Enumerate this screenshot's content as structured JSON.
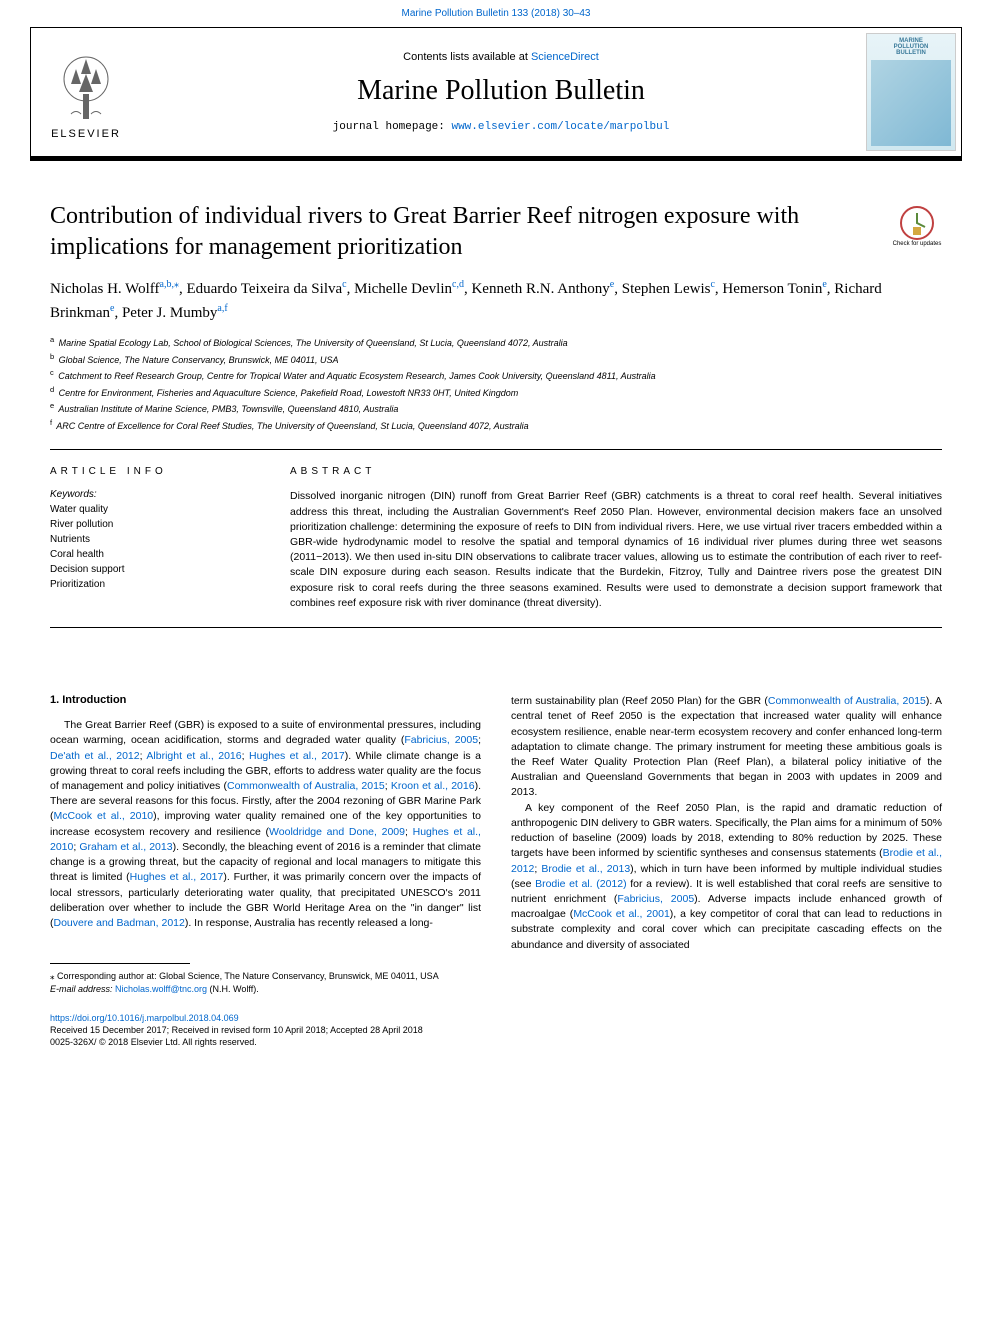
{
  "top_citation": "Marine Pollution Bulletin 133 (2018) 30–43",
  "header": {
    "contents_prefix": "Contents lists available at ",
    "contents_link": "ScienceDirect",
    "journal_name": "Marine Pollution Bulletin",
    "homepage_prefix": "journal homepage: ",
    "homepage_link": "www.elsevier.com/locate/marpolbul",
    "publisher_name": "ELSEVIER",
    "cover_title_l1": "MARINE",
    "cover_title_l2": "POLLUTION",
    "cover_title_l3": "BULLETIN"
  },
  "article": {
    "title": "Contribution of individual rivers to Great Barrier Reef nitrogen exposure with implications for management prioritization",
    "check_updates_label": "Check for updates",
    "authors_html": "Nicholas H. Wolff<sup><a>a</a>,<a>b</a>,⁎</sup>, Eduardo Teixeira da Silva<sup><a>c</a></sup>, Michelle Devlin<sup><a>c</a>,<a>d</a></sup>, Kenneth R.N. Anthony<sup><a>e</a></sup>, Stephen Lewis<sup><a>c</a></sup>, Hemerson Tonin<sup><a>e</a></sup>, Richard Brinkman<sup><a>e</a></sup>, Peter J. Mumby<sup><a>a</a>,<a>f</a></sup>",
    "affiliations": [
      {
        "sup": "a",
        "text": "Marine Spatial Ecology Lab, School of Biological Sciences, The University of Queensland, St Lucia, Queensland 4072, Australia"
      },
      {
        "sup": "b",
        "text": "Global Science, The Nature Conservancy, Brunswick, ME 04011, USA"
      },
      {
        "sup": "c",
        "text": "Catchment to Reef Research Group, Centre for Tropical Water and Aquatic Ecosystem Research, James Cook University, Queensland 4811, Australia"
      },
      {
        "sup": "d",
        "text": "Centre for Environment, Fisheries and Aquaculture Science, Pakefield Road, Lowestoft NR33 0HT, United Kingdom"
      },
      {
        "sup": "e",
        "text": "Australian Institute of Marine Science, PMB3, Townsville, Queensland 4810, Australia"
      },
      {
        "sup": "f",
        "text": "ARC Centre of Excellence for Coral Reef Studies, The University of Queensland, St Lucia, Queensland 4072, Australia"
      }
    ]
  },
  "article_info": {
    "section_label": "ARTICLE INFO",
    "keywords_label": "Keywords:",
    "keywords": [
      "Water quality",
      "River pollution",
      "Nutrients",
      "Coral health",
      "Decision support",
      "Prioritization"
    ]
  },
  "abstract": {
    "section_label": "ABSTRACT",
    "text": "Dissolved inorganic nitrogen (DIN) runoff from Great Barrier Reef (GBR) catchments is a threat to coral reef health. Several initiatives address this threat, including the Australian Government's Reef 2050 Plan. However, environmental decision makers face an unsolved prioritization challenge: determining the exposure of reefs to DIN from individual rivers. Here, we use virtual river tracers embedded within a GBR-wide hydrodynamic model to resolve the spatial and temporal dynamics of 16 individual river plumes during three wet seasons (2011−2013). We then used in-situ DIN observations to calibrate tracer values, allowing us to estimate the contribution of each river to reef-scale DIN exposure during each season. Results indicate that the Burdekin, Fitzroy, Tully and Daintree rivers pose the greatest DIN exposure risk to coral reefs during the three seasons examined. Results were used to demonstrate a decision support framework that combines reef exposure risk with river dominance (threat diversity)."
  },
  "body": {
    "heading": "1. Introduction",
    "col1_html": "The Great Barrier Reef (GBR) is exposed to a suite of environmental pressures, including ocean warming, ocean acidification, storms and degraded water quality (<a>Fabricius, 2005</a>; <a>De'ath et al., 2012</a>; <a>Albright et al., 2016</a>; <a>Hughes et al., 2017</a>). While climate change is a growing threat to coral reefs including the GBR, efforts to address water quality are the focus of management and policy initiatives (<a>Commonwealth of Australia, 2015</a>; <a>Kroon et al., 2016</a>). There are several reasons for this focus. Firstly, after the 2004 rezoning of GBR Marine Park (<a>McCook et al., 2010</a>), improving water quality remained one of the key opportunities to increase ecosystem recovery and resilience (<a>Wooldridge and Done, 2009</a>; <a>Hughes et al., 2010</a>; <a>Graham et al., 2013</a>). Secondly, the bleaching event of 2016 is a reminder that climate change is a growing threat, but the capacity of regional and local managers to mitigate this threat is limited (<a>Hughes et al., 2017</a>). Further, it was primarily concern over the impacts of local stressors, particularly deteriorating water quality, that precipitated UNESCO's 2011 deliberation over whether to include the GBR World Heritage Area on the \"in danger\" list (<a>Douvere and Badman, 2012</a>). In response, Australia has recently released a long-",
    "col2_html": "term sustainability plan (Reef 2050 Plan) for the GBR (<a>Commonwealth of Australia, 2015</a>). A central tenet of Reef 2050 is the expectation that increased water quality will enhance ecosystem resilience, enable near-term ecosystem recovery and confer enhanced long-term adaptation to climate change. The primary instrument for meeting these ambitious goals is the Reef Water Quality Protection Plan (Reef Plan), a bilateral policy initiative of the Australian and Queensland Governments that began in 2003 with updates in 2009 and 2013.",
    "col2_p2_html": "A key component of the Reef 2050 Plan, is the rapid and dramatic reduction of anthropogenic DIN delivery to GBR waters. Specifically, the Plan aims for a minimum of 50% reduction of baseline (2009) loads by 2018, extending to 80% reduction by 2025. These targets have been informed by scientific syntheses and consensus statements (<a>Brodie et al., 2012</a>; <a>Brodie et al., 2013</a>), which in turn have been informed by multiple individual studies (see <a>Brodie et al. (2012)</a> for a review). It is well established that coral reefs are sensitive to nutrient enrichment (<a>Fabricius, 2005</a>). Adverse impacts include enhanced growth of macroalgae (<a>McCook et al., 2001</a>), a key competitor of coral that can lead to reductions in substrate complexity and coral cover which can precipitate cascading effects on the abundance and diversity of associated"
  },
  "footer": {
    "corresponding_label": "⁎ Corresponding author at: Global Science, The Nature Conservancy, Brunswick, ME 04011, USA",
    "email_label": "E-mail address: ",
    "email": "Nicholas.wolff@tnc.org",
    "email_suffix": " (N.H. Wolff).",
    "doi": "https://doi.org/10.1016/j.marpolbul.2018.04.069",
    "received": "Received 15 December 2017; Received in revised form 10 April 2018; Accepted 28 April 2018",
    "copyright": "0025-326X/ © 2018 Elsevier Ltd. All rights reserved."
  },
  "colors": {
    "link": "#0066cc",
    "text": "#000000",
    "background": "#ffffff",
    "border": "#000000"
  }
}
